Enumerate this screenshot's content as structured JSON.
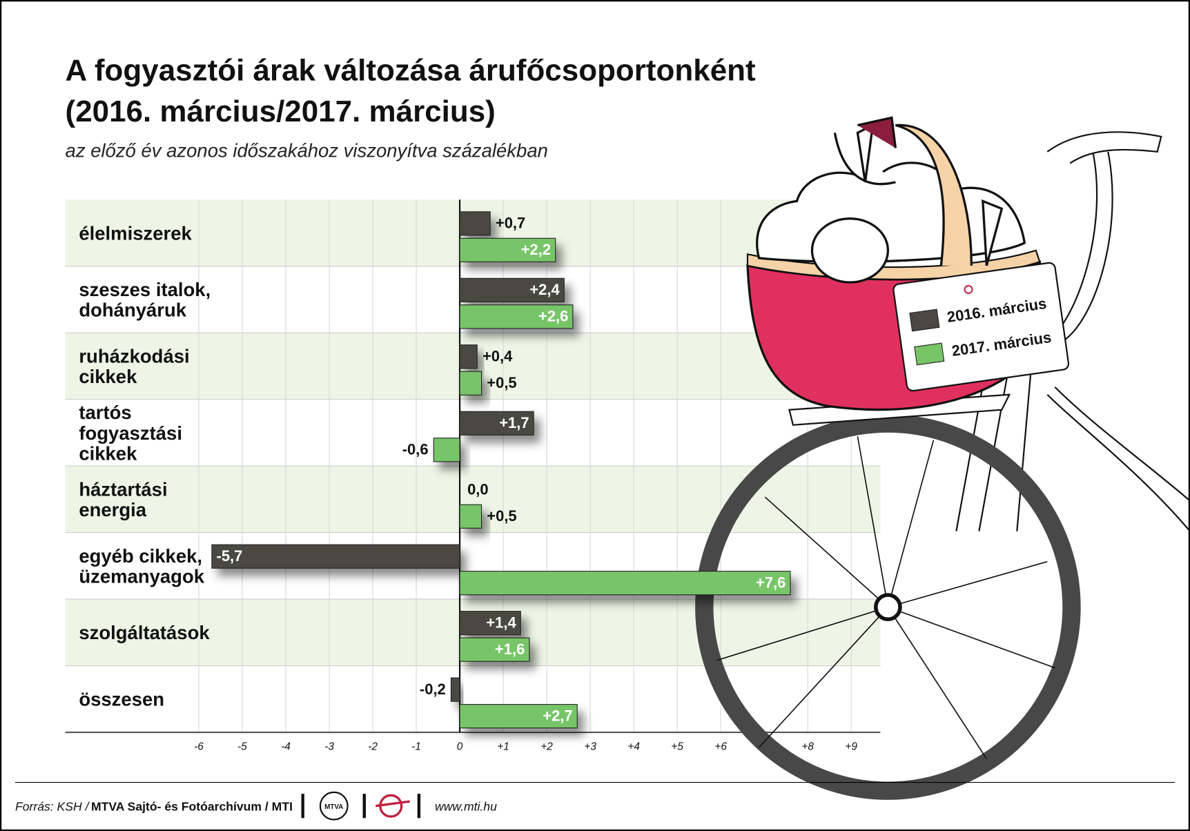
{
  "chart_data": {
    "type": "bar",
    "orientation": "horizontal",
    "title": [
      "A fogyasztói árak változása árufőcsoportonként",
      "(2016. március/2017. március)"
    ],
    "subtitle": "az előző év azonos időszakához viszonyítva százalékban",
    "categories": [
      "élelmiszerek",
      "szeszes italok,\ndohányáruk",
      "ruházkodási\ncikkek",
      "tartós\nfogyasztási\ncikkek",
      "háztartási\nenergia",
      "egyéb cikkek,\nüzemanyagok",
      "szolgáltatások",
      "összesen"
    ],
    "series": [
      {
        "name": "2016. március",
        "color": "#4a4843",
        "values": [
          0.7,
          2.4,
          0.4,
          1.7,
          0.0,
          -5.7,
          1.4,
          -0.2
        ],
        "value_labels": [
          "+0,7",
          "+2,4",
          "+0,4",
          "+1,7",
          "0,0",
          "-5,7",
          "+1,4",
          "-0,2"
        ]
      },
      {
        "name": "2017. március",
        "color": "#77c567",
        "values": [
          2.2,
          2.6,
          0.5,
          -0.6,
          0.5,
          7.6,
          1.6,
          2.7
        ],
        "value_labels": [
          "+2,2",
          "+2,6",
          "+0,5",
          "-0,6",
          "+0,5",
          "+7,6",
          "+1,6",
          "+2,7"
        ]
      }
    ],
    "xlim": [
      -9.07,
      9.67
    ],
    "xticks": [
      -6,
      -5,
      -4,
      -3,
      -2,
      -1,
      0,
      {
        "value": 1,
        "label": "+1"
      },
      {
        "value": 2,
        "label": "+2"
      },
      {
        "value": 3,
        "label": "+3"
      },
      {
        "value": 4,
        "label": "+4"
      },
      {
        "value": 5,
        "label": "+5"
      },
      {
        "value": 6,
        "label": "+6"
      },
      {
        "value": 8,
        "label": "+8"
      },
      {
        "value": 9,
        "label": "+9"
      }
    ],
    "grid": true
  },
  "footer": {
    "source_label": "Forrás: KSH /",
    "source": "MTVA Sajtó- és Fotóarchívum / MTI",
    "logo": "MTVA",
    "url": "www.mti.hu"
  }
}
